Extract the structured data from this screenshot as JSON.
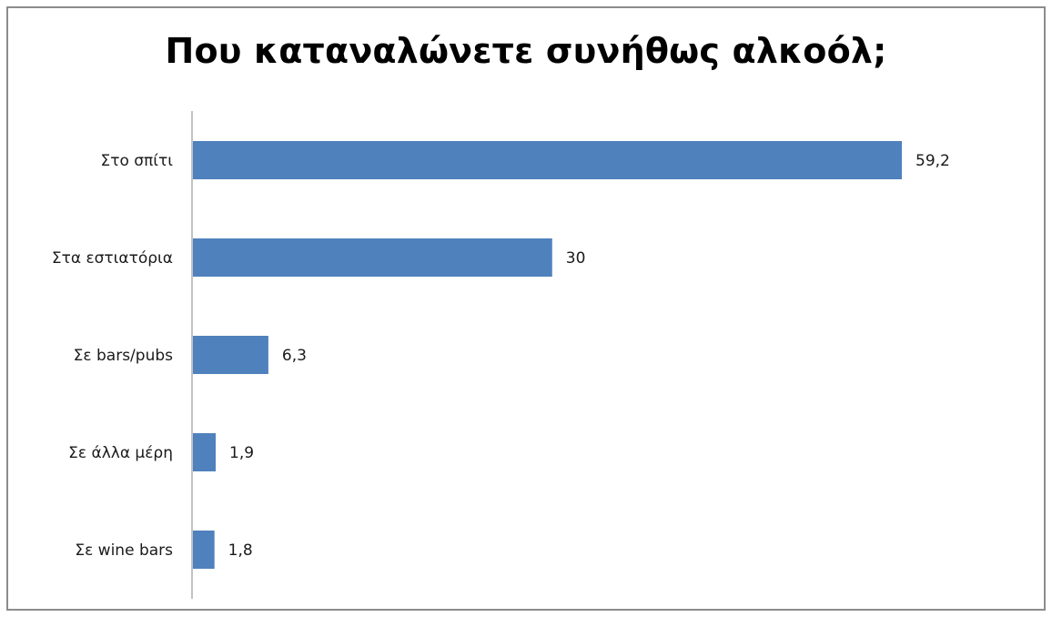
{
  "chart_data": {
    "type": "bar",
    "orientation": "horizontal",
    "title": "Που καταναλώνετε συνήθως αλκοόλ;",
    "categories": [
      "Στο σπίτι",
      "Στα εστιατόρια",
      "Σε bars/pubs",
      "Σε άλλα μέρη",
      "Σε wine bars"
    ],
    "values": [
      59.2,
      30,
      6.3,
      1.9,
      1.8
    ],
    "value_labels": [
      "59,2",
      "30",
      "6,3",
      "1,9",
      "1,8"
    ],
    "xlabel": "",
    "ylabel": "",
    "xlim": [
      0,
      60
    ],
    "grid": false,
    "legend": "none",
    "colors": {
      "bar": "#4f81bd",
      "axis": "#868686"
    }
  }
}
